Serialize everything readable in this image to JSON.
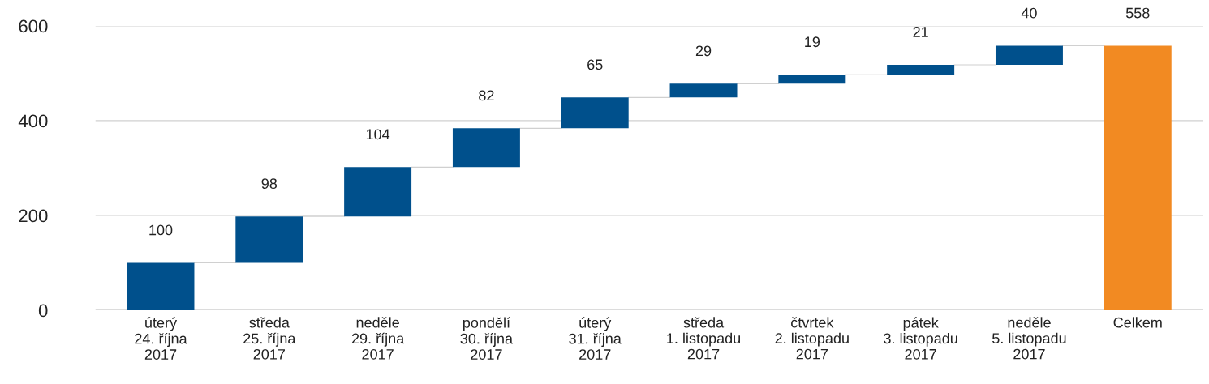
{
  "chart_data": {
    "type": "bar",
    "categories": [
      "úterý\n24. října\n2017",
      "středa\n25. října\n2017",
      "neděle\n29. října\n2017",
      "pondělí\n30. října\n2017",
      "úterý\n31. října\n2017",
      "středa\n1. listopadu\n2017",
      "čtvrtek\n2. listopadu\n2017",
      "pátek\n3. listopadu\n2017",
      "neděle\n5. listopadu\n2017",
      "Celkem"
    ],
    "values": [
      100,
      98,
      104,
      82,
      65,
      29,
      19,
      21,
      40,
      558
    ],
    "base": [
      0,
      100,
      198,
      302,
      384,
      449,
      478,
      497,
      518,
      0
    ],
    "colors": [
      "#00508c",
      "#00508c",
      "#00508c",
      "#00508c",
      "#00508c",
      "#00508c",
      "#00508c",
      "#00508c",
      "#00508c",
      "#f28a22"
    ],
    "data_labels": true,
    "ylim": [
      0,
      600
    ],
    "yticks": [
      0,
      200,
      400,
      600
    ],
    "grid": "y",
    "legend": false
  }
}
